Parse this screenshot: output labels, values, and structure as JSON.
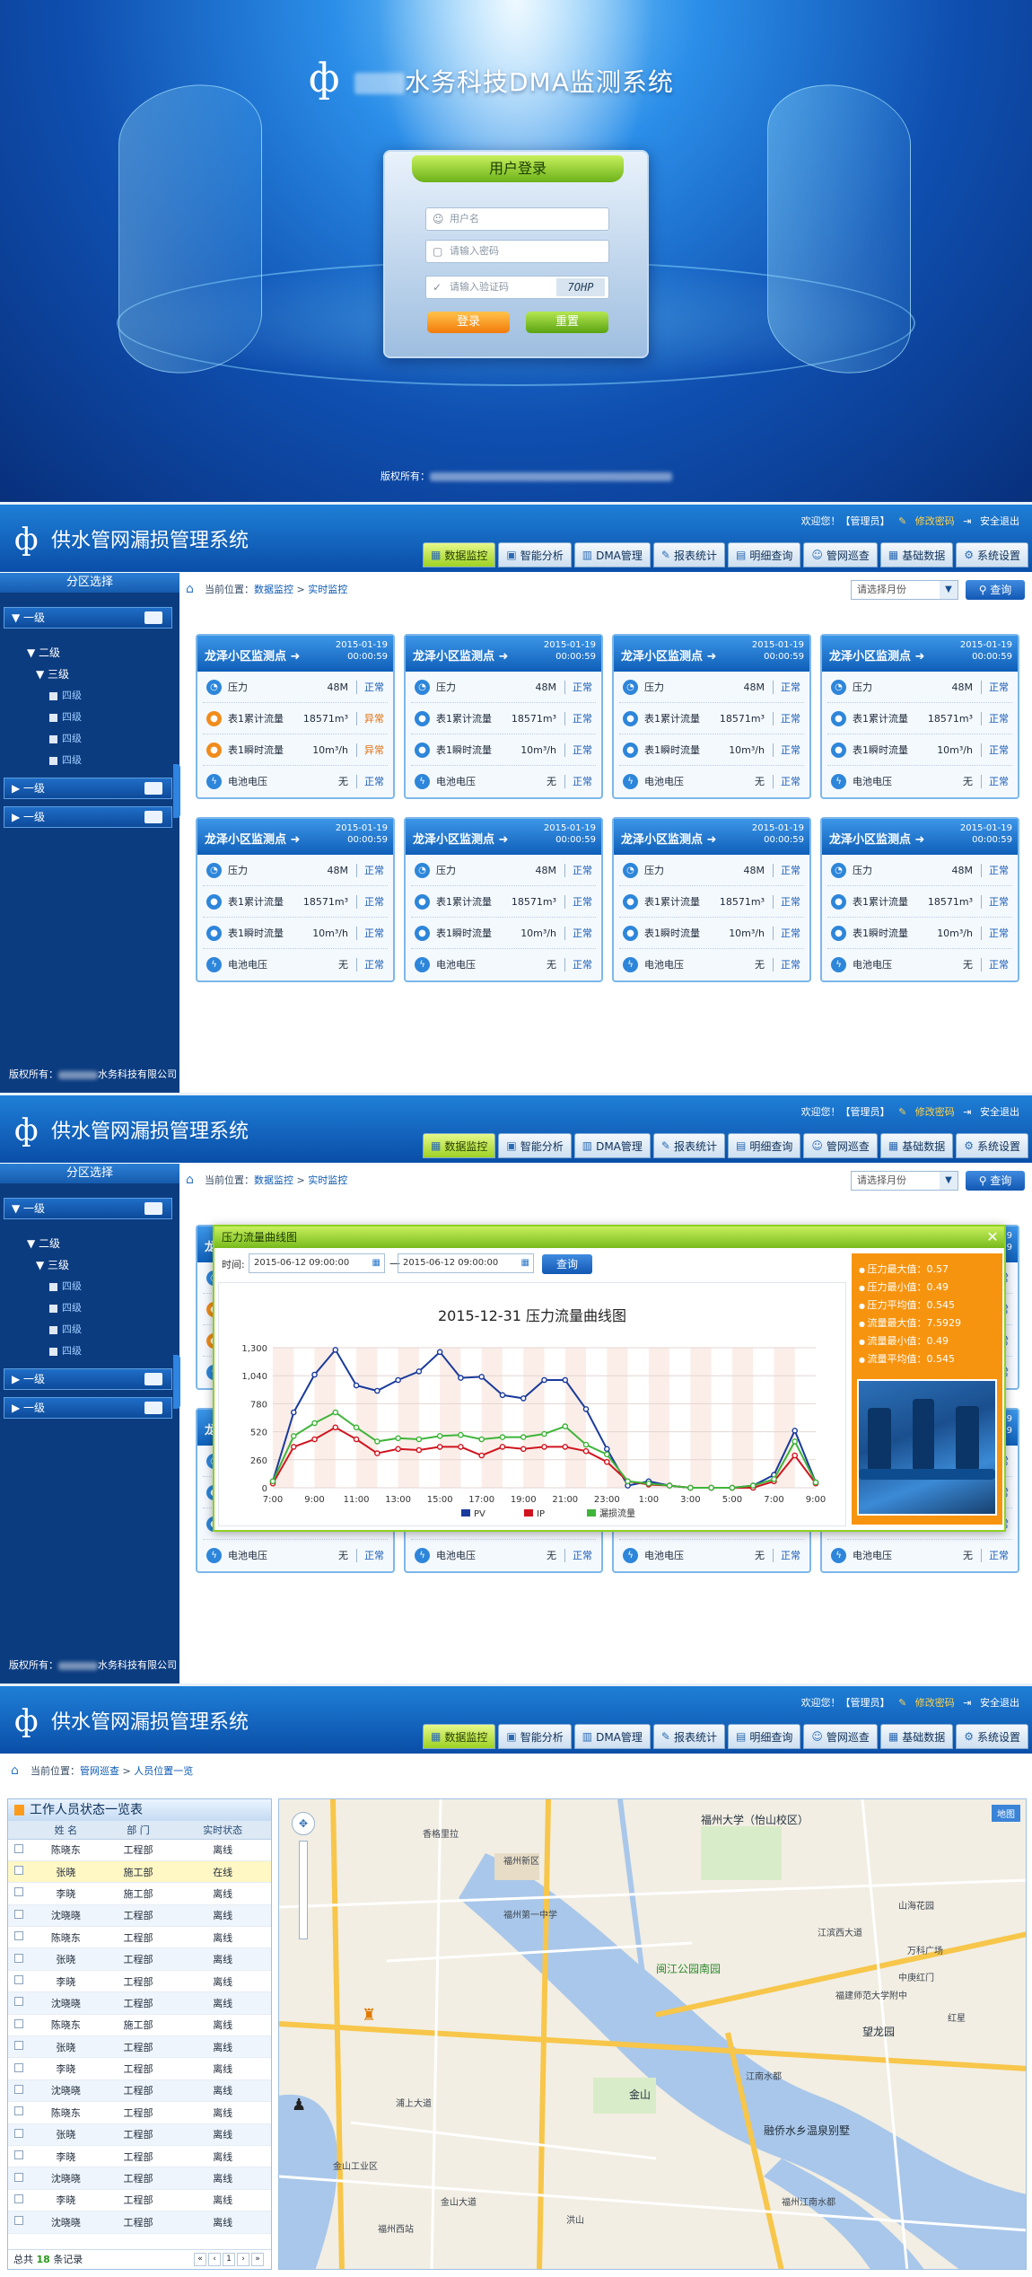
{
  "login": {
    "logo_glyph": "ф",
    "title_suffix": "水务科技DMA监测系统",
    "box_title": "用户登录",
    "username_placeholder": "用户名",
    "password_placeholder": "请输入密码",
    "captcha_placeholder": "请输入验证码",
    "captcha_code": "7OHP",
    "login_button": "登录",
    "reset_button": "重置",
    "copyright_label": "版权所有："
  },
  "header": {
    "logo_glyph": "ф",
    "title": "供水管网漏损管理系统",
    "welcome": "欢迎您！【管理员】",
    "change_password": "修改密码",
    "logout": "安全退出"
  },
  "nav": [
    {
      "label": "数据监控",
      "icon": "monitor-icon",
      "glyph": "▦"
    },
    {
      "label": "智能分析",
      "icon": "analysis-icon",
      "glyph": "▣"
    },
    {
      "label": "DMA管理",
      "icon": "dma-icon",
      "glyph": "▥"
    },
    {
      "label": "报表统计",
      "icon": "report-icon",
      "glyph": "✎"
    },
    {
      "label": "明细查询",
      "icon": "detail-icon",
      "glyph": "▤"
    },
    {
      "label": "管网巡查",
      "icon": "patrol-icon",
      "glyph": "☺"
    },
    {
      "label": "基础数据",
      "icon": "database-icon",
      "glyph": "▦"
    },
    {
      "label": "系统设置",
      "icon": "gear-icon",
      "glyph": "⚙"
    }
  ],
  "breadcrumb": {
    "prefix": "当前位置：",
    "level1": "数据监控",
    "sep": ">",
    "level2": "实时监控",
    "patrol_level1": "管网巡查",
    "patrol_level2": "人员位置一览"
  },
  "toolbar": {
    "select_placeholder": "请选择月份",
    "query_button": "查询"
  },
  "sidebar": {
    "header": "分区选择",
    "level1_label": "一级",
    "level2_label": "二级",
    "level3_label": "三级",
    "level4_label": "四级",
    "copyright_prefix": "版权所有：",
    "copyright_suffix": "水务科技有限公司"
  },
  "card": {
    "title": "龙泽小区监测点",
    "date": "2015-01-19",
    "time": "00:00:59",
    "rows": [
      {
        "name": "压力",
        "value": "48M",
        "status": "正常",
        "icon": "pressure-icon",
        "glyph": "◔"
      },
      {
        "name": "表1累计流量",
        "value": "18571m³",
        "status": "正常",
        "icon": "flow-icon",
        "glyph": "●"
      },
      {
        "name": "表1瞬时流量",
        "value": "10m³/h",
        "status": "正常",
        "icon": "flow-icon",
        "glyph": "●"
      },
      {
        "name": "电池电压",
        "value": "无",
        "status": "正常",
        "icon": "battery-icon",
        "glyph": "ϟ"
      }
    ],
    "abnormal_status": "异常"
  },
  "modal": {
    "title": "压力流量曲线图",
    "time_label": "时间:",
    "start": "2015-06-12 09:00:00",
    "dash": "—",
    "end": "2015-06-12 09:00:00",
    "query_button": "查询",
    "stats": [
      "压力最大值：0.57",
      "压力最小值：0.49",
      "压力平均值：0.545",
      "流量最大值：7.5929",
      "流量最小值：0.49",
      "流量平均值：0.545"
    ]
  },
  "chart_data": {
    "type": "line",
    "title": "2015-12-31 压力流量曲线图",
    "categories": [
      "7:00",
      "8:00",
      "9:00",
      "10:00",
      "11:00",
      "12:00",
      "13:00",
      "14:00",
      "15:00",
      "16:00",
      "17:00",
      "18:00",
      "19:00",
      "20:00",
      "21:00",
      "22:00",
      "23:00",
      "0:00",
      "1:00",
      "2:00",
      "3:00",
      "4:00",
      "5:00",
      "6:00",
      "7:00",
      "8:00",
      "9:00"
    ],
    "tick_labels": [
      "7:00",
      "9:00",
      "11:00",
      "13:00",
      "15:00",
      "17:00",
      "19:00",
      "21:00",
      "23:00",
      "1:00",
      "3:00",
      "5:00",
      "7:00",
      "9:00"
    ],
    "y_ticks": [
      "1,300",
      "1,040",
      "780",
      "520",
      "260",
      "0"
    ],
    "ylim": [
      0,
      1300
    ],
    "series": [
      {
        "name": "PV",
        "color": "#1a3a9c",
        "values": [
          60,
          700,
          1050,
          1280,
          950,
          900,
          1000,
          1080,
          1260,
          1020,
          1030,
          860,
          830,
          1000,
          1000,
          730,
          360,
          20,
          60,
          20,
          0,
          0,
          0,
          20,
          120,
          530,
          50
        ]
      },
      {
        "name": "IP",
        "color": "#d0141f",
        "values": [
          40,
          380,
          450,
          560,
          450,
          320,
          360,
          350,
          380,
          380,
          300,
          380,
          360,
          380,
          380,
          340,
          240,
          60,
          30,
          20,
          0,
          0,
          0,
          0,
          60,
          300,
          40
        ]
      },
      {
        "name": "漏损流量",
        "color": "#3fb43a",
        "values": [
          60,
          480,
          600,
          700,
          560,
          430,
          460,
          450,
          480,
          490,
          450,
          470,
          470,
          500,
          570,
          400,
          310,
          60,
          40,
          20,
          0,
          0,
          0,
          20,
          80,
          430,
          50
        ]
      }
    ]
  },
  "patrol": {
    "list_title": "工作人员状态一览表",
    "columns": [
      "姓 名",
      "部 门",
      "实时状态"
    ],
    "rows": [
      [
        "陈晓东",
        "工程部",
        "离线"
      ],
      [
        "张晓",
        "施工部",
        "在线"
      ],
      [
        "李晓",
        "施工部",
        "离线"
      ],
      [
        "沈晓晓",
        "工程部",
        "离线"
      ],
      [
        "陈晓东",
        "工程部",
        "离线"
      ],
      [
        "张晓",
        "工程部",
        "离线"
      ],
      [
        "李晓",
        "工程部",
        "离线"
      ],
      [
        "沈晓晓",
        "工程部",
        "离线"
      ],
      [
        "陈晓东",
        "施工部",
        "离线"
      ],
      [
        "张晓",
        "工程部",
        "离线"
      ],
      [
        "李晓",
        "工程部",
        "离线"
      ],
      [
        "沈晓晓",
        "工程部",
        "离线"
      ],
      [
        "陈晓东",
        "工程部",
        "离线"
      ],
      [
        "张晓",
        "工程部",
        "离线"
      ],
      [
        "李晓",
        "工程部",
        "离线"
      ],
      [
        "沈晓晓",
        "工程部",
        "离线"
      ],
      [
        "李晓",
        "工程部",
        "离线"
      ],
      [
        "沈晓晓",
        "工程部",
        "离线"
      ]
    ],
    "total_prefix": "总共",
    "total_count": "18",
    "total_suffix": "条记录",
    "pager": [
      "«",
      "‹",
      "1",
      "›",
      "»"
    ],
    "map_type": "地图",
    "map_labels": [
      "福州大学（怡山校区）",
      "闽江公园南园",
      "融侨水乡温泉别墅",
      "望龙园",
      "金山",
      "福州西站",
      "江滨西大道",
      "金山大道",
      "福州新区",
      "洪山",
      "浦上大道",
      "山海花园",
      "万科广场",
      "中庚红门",
      "福建师范大学附中",
      "福州江南水都",
      "红星",
      "金山工业区",
      "福州第一中学",
      "江南水都",
      "香格里拉"
    ]
  }
}
